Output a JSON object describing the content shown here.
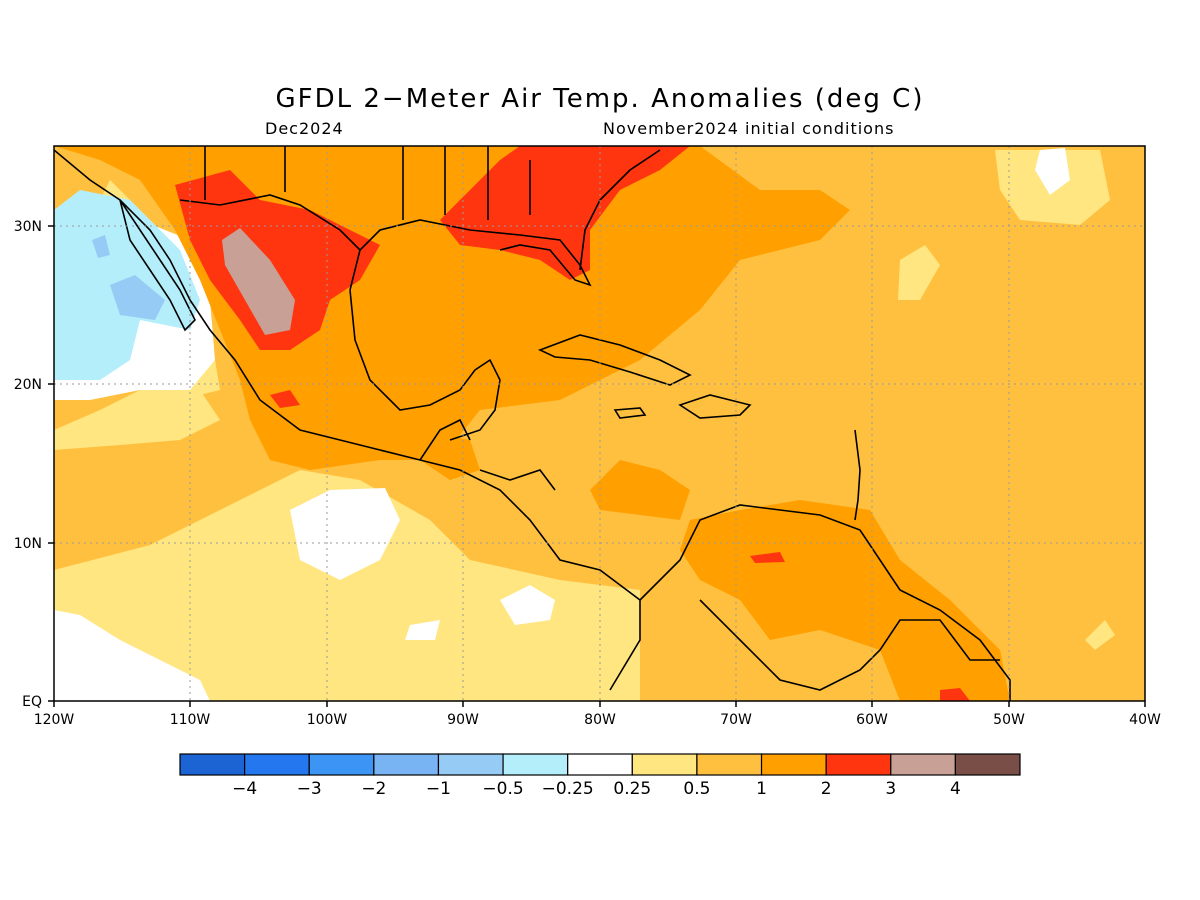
{
  "title": "GFDL 2−Meter Air Temp. Anomalies (deg C)",
  "subtitle_left": "Dec2024",
  "subtitle_right": "November2024 initial conditions",
  "lon_labels": [
    "120W",
    "110W",
    "100W",
    "90W",
    "80W",
    "70W",
    "60W",
    "50W",
    "40W"
  ],
  "lat_labels": [
    "30N",
    "20N",
    "10N",
    "EQ"
  ],
  "colorbar": {
    "colors": [
      "#1c64d4",
      "#2477ee",
      "#3c95f4",
      "#78b4f4",
      "#96cbf6",
      "#b4eefa",
      "#ffffff",
      "#ffe680",
      "#ffc040",
      "#ffa000",
      "#ff3510",
      "#c8a096",
      "#784e46"
    ],
    "labels": [
      "−4",
      "−3",
      "−2",
      "−1",
      "−0.5",
      "−0.25",
      "0.25",
      "0.5",
      "1",
      "2",
      "3",
      "4"
    ]
  },
  "colors": {
    "land_outline": "#000000",
    "grid": "#9a9a9a"
  }
}
